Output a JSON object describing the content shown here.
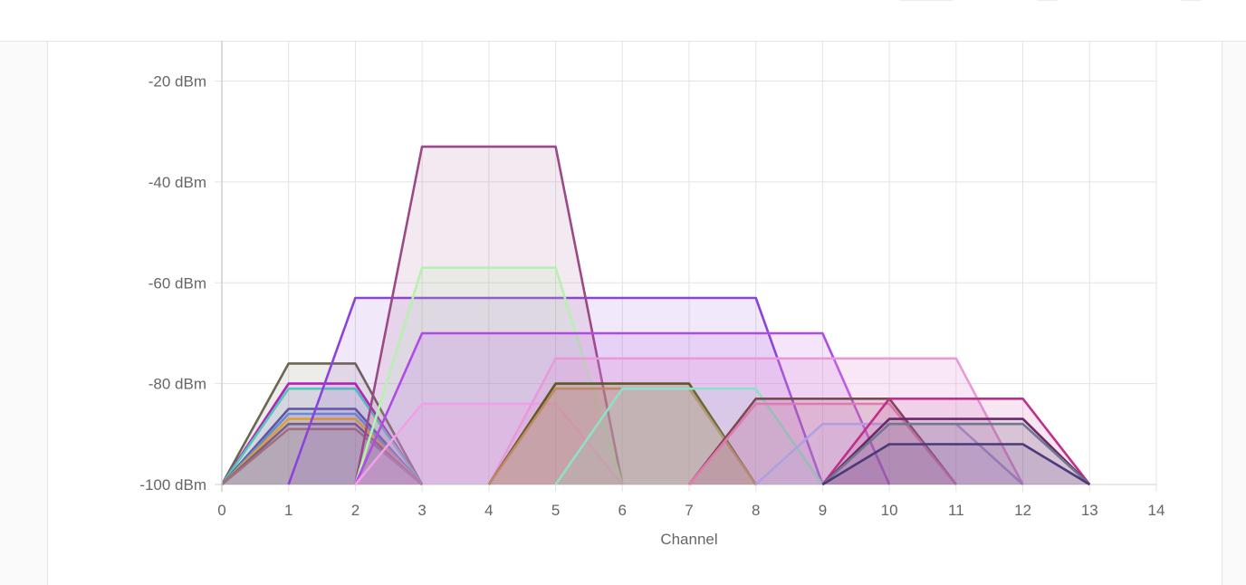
{
  "chart_data": {
    "type": "area",
    "xlabel": "Channel",
    "ylabel": "",
    "title": "",
    "xlim": [
      0,
      14
    ],
    "ylim": [
      -100,
      -12
    ],
    "x_ticks": [
      "0",
      "1",
      "2",
      "3",
      "4",
      "5",
      "6",
      "7",
      "8",
      "9",
      "10",
      "11",
      "12",
      "13",
      "14"
    ],
    "y_ticks": [
      {
        "value": -20,
        "label": "-20 dBm"
      },
      {
        "value": -40,
        "label": "-40 dBm"
      },
      {
        "value": -60,
        "label": "-60 dBm"
      },
      {
        "value": -80,
        "label": "-80 dBm"
      },
      {
        "value": -100,
        "label": "-100 dBm"
      }
    ],
    "grid": true,
    "series": [
      {
        "x": [
          0,
          1,
          2,
          3
        ],
        "values": [
          -100,
          -76,
          -76,
          -100
        ],
        "color": "#6b6650",
        "fill": "rgba(107,102,80,0.12)"
      },
      {
        "x": [
          0,
          1,
          2,
          3
        ],
        "values": [
          -100,
          -80,
          -80,
          -100
        ],
        "color": "#b61fb8",
        "fill": "rgba(182,31,184,0.10)"
      },
      {
        "x": [
          0,
          1,
          2,
          3
        ],
        "values": [
          -100,
          -81,
          -81,
          -100
        ],
        "color": "#4fc9b8",
        "fill": "rgba(79,201,184,0.10)"
      },
      {
        "x": [
          0,
          1,
          2,
          3
        ],
        "values": [
          -100,
          -85,
          -85,
          -100
        ],
        "color": "#5a5a9a",
        "fill": "rgba(90,90,154,0.10)"
      },
      {
        "x": [
          0,
          1,
          2,
          3
        ],
        "values": [
          -100,
          -86,
          -86,
          -100
        ],
        "color": "#6a8ad8",
        "fill": "rgba(106,138,216,0.10)"
      },
      {
        "x": [
          0,
          1,
          2,
          3
        ],
        "values": [
          -100,
          -87,
          -87,
          -100
        ],
        "color": "#e0a030",
        "fill": "rgba(224,160,48,0.10)"
      },
      {
        "x": [
          0,
          1,
          2,
          3
        ],
        "values": [
          -100,
          -88,
          -88,
          -100
        ],
        "color": "#7a5c8a",
        "fill": "rgba(122,92,138,0.12)"
      },
      {
        "x": [
          0,
          1,
          2,
          3
        ],
        "values": [
          -100,
          -89,
          -89,
          -100
        ],
        "color": "#a07080",
        "fill": "rgba(160,112,128,0.12)"
      },
      {
        "x": [
          1,
          2,
          8,
          9
        ],
        "values": [
          -100,
          -63,
          -63,
          -100
        ],
        "color": "#8a45d8",
        "fill": "rgba(138,69,216,0.12)"
      },
      {
        "x": [
          2,
          3,
          5,
          6
        ],
        "values": [
          -100,
          -33,
          -33,
          -100
        ],
        "color": "#9a4a86",
        "fill": "rgba(154,74,134,0.12)"
      },
      {
        "x": [
          2,
          3,
          5,
          6
        ],
        "values": [
          -100,
          -57,
          -57,
          -100
        ],
        "color": "#b8f0b0",
        "fill": "rgba(184,240,176,0.15)"
      },
      {
        "x": [
          2,
          3,
          9,
          10
        ],
        "values": [
          -100,
          -70,
          -70,
          -100
        ],
        "color": "#b24ae6",
        "fill": "rgba(178,74,230,0.14)"
      },
      {
        "x": [
          2,
          3,
          5,
          6
        ],
        "values": [
          -100,
          -84,
          -84,
          -100
        ],
        "color": "#f0a0e8",
        "fill": "rgba(240,160,232,0.22)"
      },
      {
        "x": [
          4,
          5,
          11,
          12
        ],
        "values": [
          -100,
          -75,
          -75,
          -100
        ],
        "color": "#e89ad8",
        "fill": "rgba(232,154,216,0.24)"
      },
      {
        "x": [
          4,
          5,
          7,
          8
        ],
        "values": [
          -100,
          -80,
          -80,
          -100
        ],
        "color": "#5a5a20",
        "fill": "rgba(150,140,90,0.28)"
      },
      {
        "x": [
          4,
          5,
          7,
          8
        ],
        "values": [
          -100,
          -81,
          -81,
          -100
        ],
        "color": "#c08a6a",
        "fill": "rgba(192,138,106,0.20)"
      },
      {
        "x": [
          5,
          6,
          8,
          9
        ],
        "values": [
          -100,
          -81,
          -81,
          -100
        ],
        "color": "#90e0c8",
        "fill": "rgba(144,224,200,0.14)"
      },
      {
        "x": [
          7,
          8,
          10,
          11
        ],
        "values": [
          -100,
          -83,
          -83,
          -100
        ],
        "color": "#7a4a50",
        "fill": "rgba(122,74,80,0.14)"
      },
      {
        "x": [
          7,
          8,
          10,
          11
        ],
        "values": [
          -100,
          -84,
          -84,
          -100
        ],
        "color": "#e07ab0",
        "fill": "rgba(224,122,176,0.14)"
      },
      {
        "x": [
          8,
          9,
          11,
          12
        ],
        "values": [
          -100,
          -88,
          -88,
          -100
        ],
        "color": "#b0a0e0",
        "fill": "rgba(176,160,224,0.14)"
      },
      {
        "x": [
          9,
          10,
          12,
          13
        ],
        "values": [
          -100,
          -83,
          -83,
          -100
        ],
        "color": "#c0308a",
        "fill": "rgba(192,48,138,0.12)"
      },
      {
        "x": [
          9,
          10,
          12,
          13
        ],
        "values": [
          -100,
          -87,
          -87,
          -100
        ],
        "color": "#6a2a6a",
        "fill": "rgba(106,42,106,0.12)"
      },
      {
        "x": [
          9,
          10,
          12,
          13
        ],
        "values": [
          -100,
          -88,
          -88,
          -100
        ],
        "color": "#707890",
        "fill": "rgba(112,120,144,0.12)"
      },
      {
        "x": [
          9,
          10,
          12,
          13
        ],
        "values": [
          -100,
          -92,
          -92,
          -100
        ],
        "color": "#4a3a7a",
        "fill": "rgba(74,58,122,0.12)"
      }
    ]
  }
}
